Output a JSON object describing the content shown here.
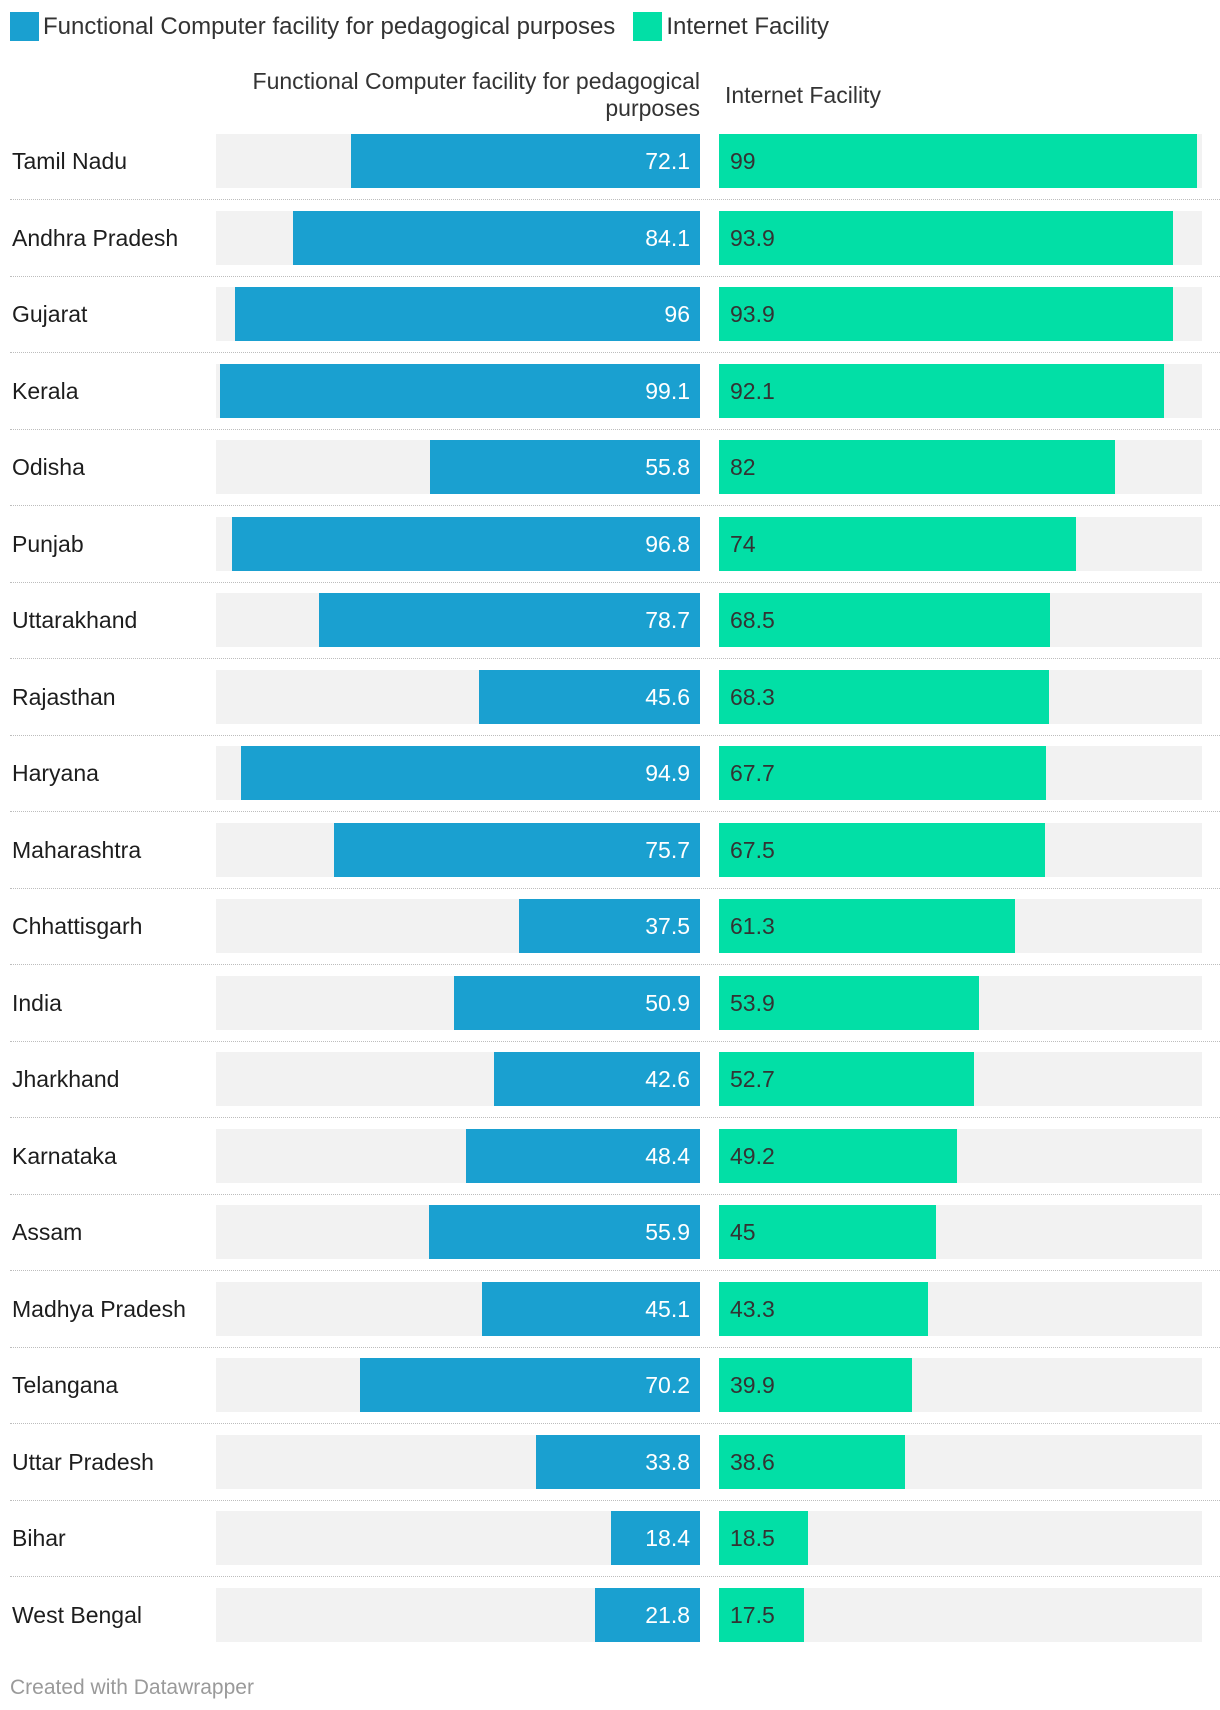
{
  "colors": {
    "computer": "#1aa0d0",
    "internet": "#02dfa6",
    "track": "#f2f2f2"
  },
  "legend": [
    {
      "label": "Functional Computer facility for pedagogical purposes",
      "color": "#1aa0d0"
    },
    {
      "label": "Internet Facility",
      "color": "#02dfa6"
    }
  ],
  "headers": {
    "computer": "Functional Computer facility for pedagogical purposes",
    "internet": "Internet Facility"
  },
  "chart_data": {
    "type": "bar",
    "orientation": "horizontal",
    "layout": "split-bars",
    "categories": [
      "Tamil Nadu",
      "Andhra Pradesh",
      "Gujarat",
      "Kerala",
      "Odisha",
      "Punjab",
      "Uttarakhand",
      "Rajasthan",
      "Haryana",
      "Maharashtra",
      "Chhattisgarh",
      "India",
      "Jharkhand",
      "Karnataka",
      "Assam",
      "Madhya Pradesh",
      "Telangana",
      "Uttar Pradesh",
      "Bihar",
      "West Bengal"
    ],
    "series": [
      {
        "name": "Functional Computer facility for pedagogical purposes",
        "values": [
          72.1,
          84.1,
          96,
          99.1,
          55.8,
          96.8,
          78.7,
          45.6,
          94.9,
          75.7,
          37.5,
          50.9,
          42.6,
          48.4,
          55.9,
          45.1,
          70.2,
          33.8,
          18.4,
          21.8
        ]
      },
      {
        "name": "Internet Facility",
        "values": [
          99,
          93.9,
          93.9,
          92.1,
          82,
          74,
          68.5,
          68.3,
          67.7,
          67.5,
          61.3,
          53.9,
          52.7,
          49.2,
          45,
          43.3,
          39.9,
          38.6,
          18.5,
          17.5
        ]
      }
    ],
    "xlim": [
      0,
      100
    ],
    "sort": "Internet Facility descending",
    "legend_position": "top-left"
  },
  "footer": "Created with Datawrapper"
}
